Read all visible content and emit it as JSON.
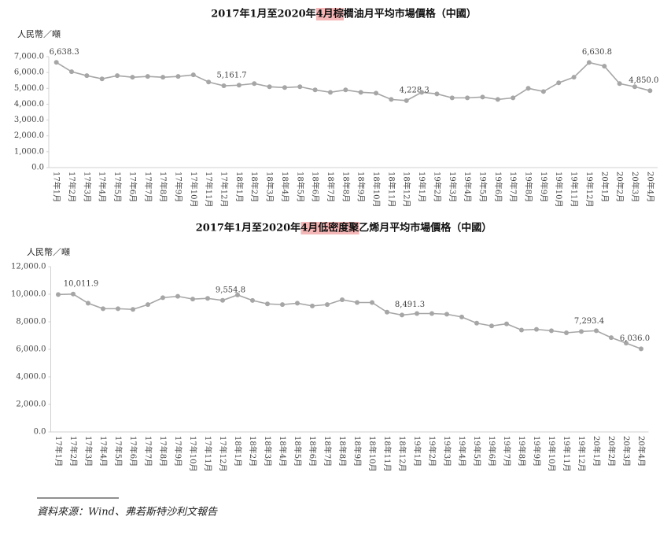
{
  "chart_data": [
    {
      "type": "line",
      "title": "2017年1月至2020年4月棕櫚油月平均市場價格（中國）",
      "y_label": "人民幣／噸",
      "categories": [
        "17年1月",
        "17年2月",
        "17年3月",
        "17年4月",
        "17年5月",
        "17年6月",
        "17年7月",
        "17年8月",
        "17年9月",
        "17年10月",
        "17年11月",
        "17年12月",
        "18年1月",
        "18年2月",
        "18年3月",
        "18年4月",
        "18年5月",
        "18年6月",
        "18年7月",
        "18年8月",
        "18年9月",
        "18年10月",
        "18年11月",
        "18年12月",
        "19年1月",
        "19年2月",
        "19年3月",
        "19年4月",
        "19年5月",
        "19年6月",
        "19年7月",
        "19年8月",
        "19年9月",
        "19年10月",
        "19年11月",
        "19年12月",
        "20年1月",
        "20年2月",
        "20年3月",
        "20年4月"
      ],
      "values": [
        6638.3,
        6050,
        5800,
        5600,
        5800,
        5700,
        5750,
        5700,
        5750,
        5850,
        5400,
        5161.7,
        5200,
        5300,
        5100,
        5050,
        5100,
        4900,
        4750,
        4900,
        4750,
        4700,
        4300,
        4228.3,
        4750,
        4650,
        4400,
        4400,
        4450,
        4300,
        4400,
        5000,
        4800,
        5350,
        5700,
        6630.8,
        6400,
        5300,
        5100,
        4850.0
      ],
      "value_labels": [
        "6,638.3",
        null,
        null,
        null,
        null,
        null,
        null,
        null,
        null,
        null,
        null,
        "5,161.7",
        null,
        null,
        null,
        null,
        null,
        null,
        null,
        null,
        null,
        null,
        null,
        "4,228.3",
        null,
        null,
        null,
        null,
        null,
        null,
        null,
        null,
        null,
        null,
        null,
        "6,630.8",
        null,
        null,
        null,
        "4,850.0"
      ],
      "color": "#a6a6a6",
      "ylim": [
        0,
        7000
      ],
      "yticks": [
        {
          "value": 0,
          "label": "0.0"
        },
        {
          "value": 1000,
          "label": "1,000.0"
        },
        {
          "value": 2000,
          "label": "2,000.0"
        },
        {
          "value": 3000,
          "label": "3,000.0"
        },
        {
          "value": 4000,
          "label": "4,000.0"
        },
        {
          "value": 5000,
          "label": "5,000.0"
        },
        {
          "value": 6000,
          "label": "6,000.0"
        },
        {
          "value": 7000,
          "label": "7,000.0"
        }
      ],
      "grid": false
    },
    {
      "type": "line",
      "title": "2017年1月至2020年4月低密度聚乙烯月平均市場價格（中國）",
      "y_label": "人民幣／噸",
      "categories": [
        "17年1月",
        "17年2月",
        "17年3月",
        "17年4月",
        "17年5月",
        "17年6月",
        "17年7月",
        "17年8月",
        "17年9月",
        "17年10月",
        "17年11月",
        "17年12月",
        "18年1月",
        "18年2月",
        "18年3月",
        "18年4月",
        "18年5月",
        "18年6月",
        "18年7月",
        "18年8月",
        "18年9月",
        "18年10月",
        "18年11月",
        "18年12月",
        "19年1月",
        "19年2月",
        "19年3月",
        "19年4月",
        "19年5月",
        "19年6月",
        "19年7月",
        "19年8月",
        "19年9月",
        "19年10月",
        "19年11月",
        "19年12月",
        "20年1月",
        "20年2月",
        "20年3月",
        "20年4月"
      ],
      "values": [
        9980,
        10011.9,
        9350,
        8950,
        8950,
        8900,
        9250,
        9750,
        9850,
        9650,
        9700,
        9554.8,
        9950,
        9550,
        9300,
        9250,
        9350,
        9150,
        9250,
        9600,
        9400,
        9400,
        8700,
        8491.3,
        8600,
        8600,
        8550,
        8350,
        7900,
        7700,
        7850,
        7400,
        7450,
        7350,
        7200,
        7293.4,
        7350,
        6850,
        6450,
        6036.0
      ],
      "value_labels": [
        null,
        "10,011.9",
        null,
        null,
        null,
        null,
        null,
        null,
        null,
        null,
        null,
        "9,554.8",
        null,
        null,
        null,
        null,
        null,
        null,
        null,
        null,
        null,
        null,
        null,
        "8,491.3",
        null,
        null,
        null,
        null,
        null,
        null,
        null,
        null,
        null,
        null,
        null,
        "7,293.4",
        null,
        null,
        null,
        "6,036.0"
      ],
      "color": "#a6a6a6",
      "ylim": [
        0,
        12000
      ],
      "yticks": [
        {
          "value": 0,
          "label": "0.0"
        },
        {
          "value": 2000,
          "label": "2,000.0"
        },
        {
          "value": 4000,
          "label": "4,000.0"
        },
        {
          "value": 6000,
          "label": "6,000.0"
        },
        {
          "value": 8000,
          "label": "8,000.0"
        },
        {
          "value": 10000,
          "label": "10,000.0"
        },
        {
          "value": 12000,
          "label": "12,000.0"
        }
      ],
      "grid": false
    }
  ],
  "source": "資料來源：Wind、弗若斯特沙利文報告"
}
